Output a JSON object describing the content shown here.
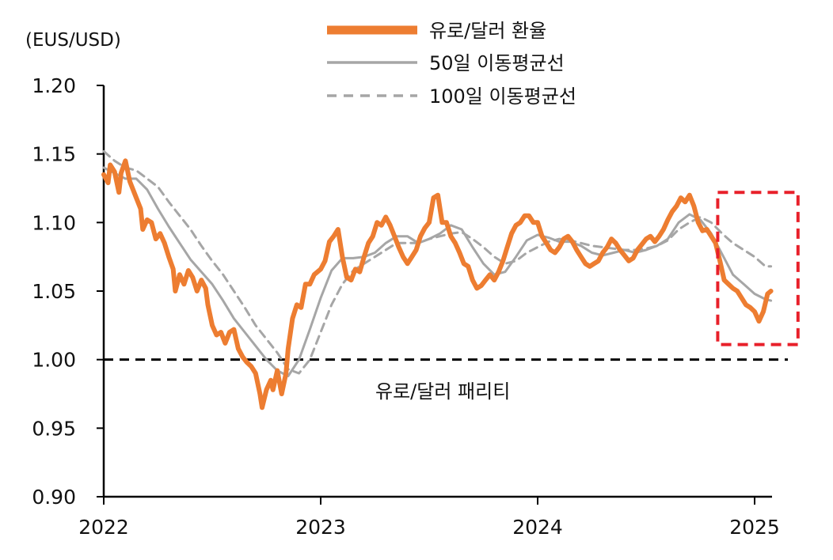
{
  "chart_data": {
    "type": "line",
    "unit_label": "(EUS/USD)",
    "x_ticks": [
      "2022",
      "2023",
      "2024",
      "2025"
    ],
    "y_ticks": [
      "1.20",
      "1.15",
      "1.10",
      "1.05",
      "1.00",
      "0.95",
      "0.90"
    ],
    "ylim": [
      0.9,
      1.2
    ],
    "xlim": [
      2022.0,
      2025.08
    ],
    "grid": false,
    "legend_position": "top",
    "reference_line": {
      "value": 1.0,
      "label": "유로/달러 패리티",
      "style": "dashed",
      "color": "#000000"
    },
    "highlight_box": {
      "x_range": [
        2024.83,
        2025.2
      ],
      "y_range": [
        1.011,
        1.122
      ],
      "style": "dashed",
      "color": "#e8202a"
    },
    "series": [
      {
        "name": "유로/달러 환율",
        "style": "solid-thick",
        "color": "#ed7d31",
        "points": [
          [
            2022.0,
            1.135
          ],
          [
            2022.02,
            1.129
          ],
          [
            2022.03,
            1.142
          ],
          [
            2022.05,
            1.137
          ],
          [
            2022.07,
            1.122
          ],
          [
            2022.08,
            1.136
          ],
          [
            2022.1,
            1.145
          ],
          [
            2022.12,
            1.13
          ],
          [
            2022.15,
            1.118
          ],
          [
            2022.17,
            1.11
          ],
          [
            2022.18,
            1.095
          ],
          [
            2022.2,
            1.102
          ],
          [
            2022.22,
            1.1
          ],
          [
            2022.24,
            1.088
          ],
          [
            2022.26,
            1.092
          ],
          [
            2022.28,
            1.085
          ],
          [
            2022.3,
            1.075
          ],
          [
            2022.32,
            1.066
          ],
          [
            2022.33,
            1.05
          ],
          [
            2022.35,
            1.062
          ],
          [
            2022.37,
            1.055
          ],
          [
            2022.39,
            1.065
          ],
          [
            2022.41,
            1.06
          ],
          [
            2022.43,
            1.05
          ],
          [
            2022.45,
            1.058
          ],
          [
            2022.47,
            1.052
          ],
          [
            2022.48,
            1.04
          ],
          [
            2022.5,
            1.025
          ],
          [
            2022.52,
            1.018
          ],
          [
            2022.54,
            1.02
          ],
          [
            2022.56,
            1.012
          ],
          [
            2022.58,
            1.02
          ],
          [
            2022.6,
            1.022
          ],
          [
            2022.62,
            1.008
          ],
          [
            2022.64,
            1.002
          ],
          [
            2022.66,
            0.998
          ],
          [
            2022.68,
            0.995
          ],
          [
            2022.7,
            0.99
          ],
          [
            2022.72,
            0.975
          ],
          [
            2022.73,
            0.965
          ],
          [
            2022.75,
            0.978
          ],
          [
            2022.77,
            0.985
          ],
          [
            2022.78,
            0.978
          ],
          [
            2022.8,
            0.992
          ],
          [
            2022.82,
            0.975
          ],
          [
            2022.84,
            0.99
          ],
          [
            2022.85,
            1.008
          ],
          [
            2022.87,
            1.03
          ],
          [
            2022.89,
            1.04
          ],
          [
            2022.91,
            1.038
          ],
          [
            2022.93,
            1.055
          ],
          [
            2022.95,
            1.055
          ],
          [
            2022.97,
            1.062
          ],
          [
            2023.0,
            1.066
          ],
          [
            2023.02,
            1.072
          ],
          [
            2023.04,
            1.086
          ],
          [
            2023.06,
            1.09
          ],
          [
            2023.08,
            1.095
          ],
          [
            2023.1,
            1.075
          ],
          [
            2023.12,
            1.06
          ],
          [
            2023.14,
            1.058
          ],
          [
            2023.16,
            1.066
          ],
          [
            2023.18,
            1.064
          ],
          [
            2023.2,
            1.075
          ],
          [
            2023.22,
            1.085
          ],
          [
            2023.24,
            1.09
          ],
          [
            2023.26,
            1.1
          ],
          [
            2023.28,
            1.098
          ],
          [
            2023.3,
            1.104
          ],
          [
            2023.32,
            1.098
          ],
          [
            2023.34,
            1.09
          ],
          [
            2023.36,
            1.082
          ],
          [
            2023.38,
            1.075
          ],
          [
            2023.4,
            1.07
          ],
          [
            2023.42,
            1.075
          ],
          [
            2023.44,
            1.08
          ],
          [
            2023.46,
            1.09
          ],
          [
            2023.48,
            1.096
          ],
          [
            2023.5,
            1.1
          ],
          [
            2023.52,
            1.118
          ],
          [
            2023.54,
            1.12
          ],
          [
            2023.56,
            1.1
          ],
          [
            2023.58,
            1.1
          ],
          [
            2023.6,
            1.09
          ],
          [
            2023.62,
            1.085
          ],
          [
            2023.64,
            1.078
          ],
          [
            2023.66,
            1.07
          ],
          [
            2023.68,
            1.068
          ],
          [
            2023.7,
            1.058
          ],
          [
            2023.72,
            1.052
          ],
          [
            2023.74,
            1.054
          ],
          [
            2023.76,
            1.058
          ],
          [
            2023.78,
            1.062
          ],
          [
            2023.8,
            1.058
          ],
          [
            2023.82,
            1.064
          ],
          [
            2023.84,
            1.072
          ],
          [
            2023.86,
            1.082
          ],
          [
            2023.88,
            1.092
          ],
          [
            2023.9,
            1.098
          ],
          [
            2023.92,
            1.1
          ],
          [
            2023.94,
            1.105
          ],
          [
            2023.96,
            1.105
          ],
          [
            2023.98,
            1.1
          ],
          [
            2024.0,
            1.1
          ],
          [
            2024.02,
            1.09
          ],
          [
            2024.04,
            1.085
          ],
          [
            2024.06,
            1.08
          ],
          [
            2024.08,
            1.078
          ],
          [
            2024.1,
            1.082
          ],
          [
            2024.12,
            1.088
          ],
          [
            2024.14,
            1.09
          ],
          [
            2024.16,
            1.086
          ],
          [
            2024.18,
            1.08
          ],
          [
            2024.2,
            1.075
          ],
          [
            2024.22,
            1.07
          ],
          [
            2024.24,
            1.068
          ],
          [
            2024.26,
            1.07
          ],
          [
            2024.28,
            1.072
          ],
          [
            2024.3,
            1.078
          ],
          [
            2024.32,
            1.082
          ],
          [
            2024.34,
            1.088
          ],
          [
            2024.36,
            1.085
          ],
          [
            2024.38,
            1.08
          ],
          [
            2024.4,
            1.076
          ],
          [
            2024.42,
            1.072
          ],
          [
            2024.44,
            1.074
          ],
          [
            2024.46,
            1.08
          ],
          [
            2024.48,
            1.084
          ],
          [
            2024.5,
            1.088
          ],
          [
            2024.52,
            1.09
          ],
          [
            2024.54,
            1.086
          ],
          [
            2024.56,
            1.09
          ],
          [
            2024.58,
            1.095
          ],
          [
            2024.6,
            1.102
          ],
          [
            2024.62,
            1.108
          ],
          [
            2024.64,
            1.112
          ],
          [
            2024.66,
            1.118
          ],
          [
            2024.68,
            1.115
          ],
          [
            2024.7,
            1.12
          ],
          [
            2024.72,
            1.112
          ],
          [
            2024.74,
            1.1
          ],
          [
            2024.76,
            1.094
          ],
          [
            2024.78,
            1.095
          ],
          [
            2024.8,
            1.09
          ],
          [
            2024.82,
            1.085
          ],
          [
            2024.84,
            1.072
          ],
          [
            2024.86,
            1.058
          ],
          [
            2024.88,
            1.055
          ],
          [
            2024.9,
            1.052
          ],
          [
            2024.92,
            1.05
          ],
          [
            2024.94,
            1.045
          ],
          [
            2024.96,
            1.04
          ],
          [
            2024.98,
            1.038
          ],
          [
            2025.0,
            1.035
          ],
          [
            2025.02,
            1.028
          ],
          [
            2025.04,
            1.035
          ],
          [
            2025.06,
            1.048
          ],
          [
            2025.075,
            1.05
          ]
        ]
      },
      {
        "name": "50일 이동평균선",
        "style": "solid",
        "color": "#a6a6a6",
        "points": [
          [
            2022.0,
            1.14
          ],
          [
            2022.05,
            1.136
          ],
          [
            2022.1,
            1.132
          ],
          [
            2022.15,
            1.132
          ],
          [
            2022.2,
            1.124
          ],
          [
            2022.25,
            1.11
          ],
          [
            2022.3,
            1.097
          ],
          [
            2022.35,
            1.085
          ],
          [
            2022.4,
            1.073
          ],
          [
            2022.45,
            1.064
          ],
          [
            2022.5,
            1.055
          ],
          [
            2022.55,
            1.043
          ],
          [
            2022.6,
            1.03
          ],
          [
            2022.65,
            1.02
          ],
          [
            2022.7,
            1.01
          ],
          [
            2022.75,
            1.0
          ],
          [
            2022.8,
            0.992
          ],
          [
            2022.85,
            0.988
          ],
          [
            2022.9,
            1.0
          ],
          [
            2022.95,
            1.022
          ],
          [
            2023.0,
            1.045
          ],
          [
            2023.05,
            1.065
          ],
          [
            2023.1,
            1.074
          ],
          [
            2023.15,
            1.074
          ],
          [
            2023.2,
            1.075
          ],
          [
            2023.25,
            1.078
          ],
          [
            2023.3,
            1.085
          ],
          [
            2023.35,
            1.09
          ],
          [
            2023.4,
            1.09
          ],
          [
            2023.45,
            1.085
          ],
          [
            2023.5,
            1.088
          ],
          [
            2023.55,
            1.092
          ],
          [
            2023.6,
            1.098
          ],
          [
            2023.65,
            1.095
          ],
          [
            2023.7,
            1.082
          ],
          [
            2023.75,
            1.07
          ],
          [
            2023.8,
            1.062
          ],
          [
            2023.85,
            1.064
          ],
          [
            2023.9,
            1.075
          ],
          [
            2023.95,
            1.087
          ],
          [
            2024.0,
            1.091
          ],
          [
            2024.05,
            1.089
          ],
          [
            2024.1,
            1.086
          ],
          [
            2024.15,
            1.086
          ],
          [
            2024.2,
            1.083
          ],
          [
            2024.25,
            1.078
          ],
          [
            2024.3,
            1.076
          ],
          [
            2024.35,
            1.078
          ],
          [
            2024.4,
            1.08
          ],
          [
            2024.45,
            1.078
          ],
          [
            2024.5,
            1.08
          ],
          [
            2024.55,
            1.083
          ],
          [
            2024.6,
            1.088
          ],
          [
            2024.65,
            1.1
          ],
          [
            2024.7,
            1.106
          ],
          [
            2024.75,
            1.102
          ],
          [
            2024.8,
            1.092
          ],
          [
            2024.85,
            1.077
          ],
          [
            2024.9,
            1.062
          ],
          [
            2024.95,
            1.055
          ],
          [
            2025.0,
            1.048
          ],
          [
            2025.05,
            1.044
          ],
          [
            2025.075,
            1.043
          ]
        ]
      },
      {
        "name": "100일 이동평균선",
        "style": "dashed",
        "color": "#a6a6a6",
        "points": [
          [
            2022.0,
            1.152
          ],
          [
            2022.05,
            1.145
          ],
          [
            2022.1,
            1.14
          ],
          [
            2022.15,
            1.138
          ],
          [
            2022.2,
            1.132
          ],
          [
            2022.25,
            1.126
          ],
          [
            2022.3,
            1.115
          ],
          [
            2022.35,
            1.105
          ],
          [
            2022.4,
            1.095
          ],
          [
            2022.45,
            1.083
          ],
          [
            2022.5,
            1.072
          ],
          [
            2022.55,
            1.062
          ],
          [
            2022.6,
            1.05
          ],
          [
            2022.65,
            1.038
          ],
          [
            2022.7,
            1.025
          ],
          [
            2022.75,
            1.015
          ],
          [
            2022.8,
            1.005
          ],
          [
            2022.85,
            0.993
          ],
          [
            2022.9,
            0.99
          ],
          [
            2022.95,
            1.0
          ],
          [
            2023.0,
            1.02
          ],
          [
            2023.05,
            1.04
          ],
          [
            2023.1,
            1.055
          ],
          [
            2023.15,
            1.065
          ],
          [
            2023.2,
            1.07
          ],
          [
            2023.25,
            1.075
          ],
          [
            2023.3,
            1.08
          ],
          [
            2023.35,
            1.085
          ],
          [
            2023.4,
            1.085
          ],
          [
            2023.45,
            1.085
          ],
          [
            2023.5,
            1.088
          ],
          [
            2023.55,
            1.09
          ],
          [
            2023.6,
            1.092
          ],
          [
            2023.65,
            1.093
          ],
          [
            2023.7,
            1.088
          ],
          [
            2023.75,
            1.082
          ],
          [
            2023.8,
            1.075
          ],
          [
            2023.85,
            1.07
          ],
          [
            2023.9,
            1.072
          ],
          [
            2023.95,
            1.078
          ],
          [
            2024.0,
            1.082
          ],
          [
            2024.05,
            1.086
          ],
          [
            2024.1,
            1.088
          ],
          [
            2024.15,
            1.087
          ],
          [
            2024.2,
            1.085
          ],
          [
            2024.25,
            1.083
          ],
          [
            2024.3,
            1.082
          ],
          [
            2024.35,
            1.081
          ],
          [
            2024.4,
            1.08
          ],
          [
            2024.45,
            1.08
          ],
          [
            2024.5,
            1.081
          ],
          [
            2024.55,
            1.083
          ],
          [
            2024.6,
            1.087
          ],
          [
            2024.65,
            1.095
          ],
          [
            2024.7,
            1.1
          ],
          [
            2024.75,
            1.104
          ],
          [
            2024.8,
            1.1
          ],
          [
            2024.85,
            1.092
          ],
          [
            2024.9,
            1.085
          ],
          [
            2024.95,
            1.08
          ],
          [
            2025.0,
            1.075
          ],
          [
            2025.05,
            1.068
          ],
          [
            2025.075,
            1.068
          ]
        ]
      }
    ]
  }
}
